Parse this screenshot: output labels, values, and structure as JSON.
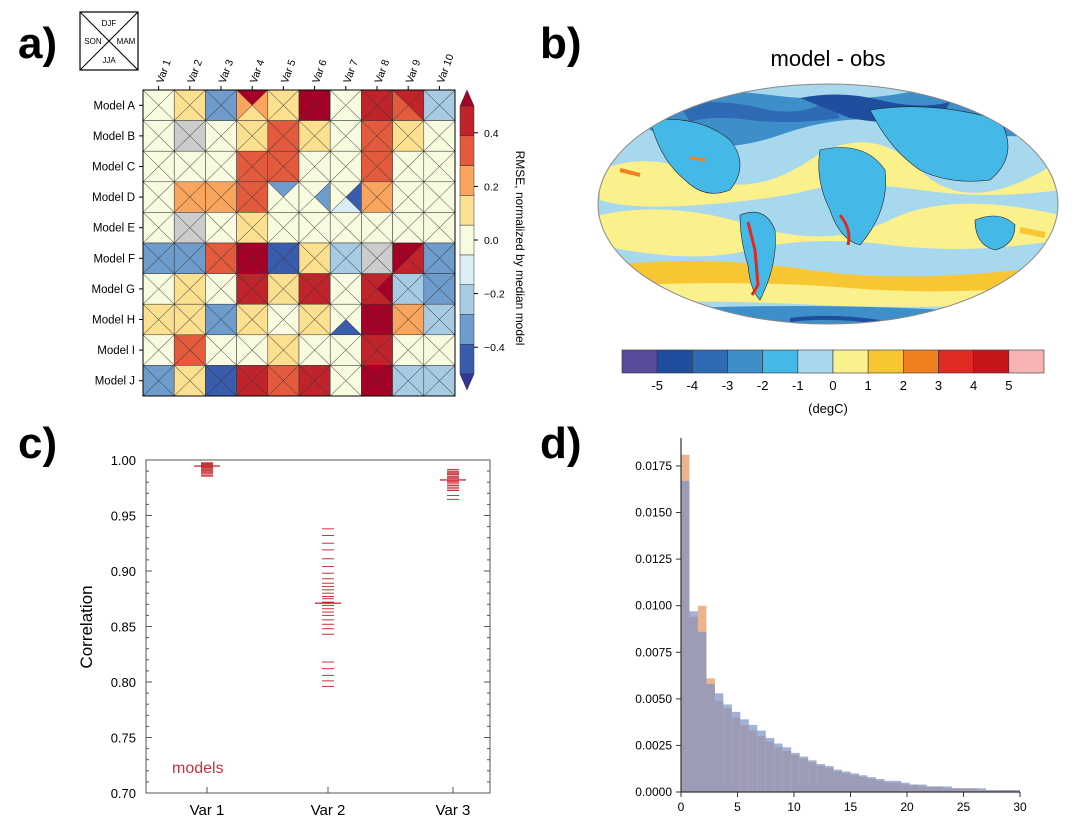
{
  "panels": {
    "a": {
      "label": "a)"
    },
    "b": {
      "label": "b)"
    },
    "c": {
      "label": "c)"
    },
    "d": {
      "label": "d)"
    }
  },
  "chart_data": [
    {
      "type": "heatmap",
      "panel": "a",
      "legend_box": {
        "top": "DJF",
        "left": "SON",
        "right": "MAM",
        "bottom": "JJA"
      },
      "columns": [
        "Var 1",
        "Var 2",
        "Var 3",
        "Var 4",
        "Var 5",
        "Var 6",
        "Var 7",
        "Var 8",
        "Var 9",
        "Var 10"
      ],
      "rows": [
        "Model A",
        "Model B",
        "Model C",
        "Model D",
        "Model E",
        "Model F",
        "Model G",
        "Model H",
        "Model I",
        "Model J"
      ],
      "season_order": [
        "DJF",
        "MAM",
        "JJA",
        "SON"
      ],
      "values": [
        [
          [
            0.05,
            0.05,
            0.05,
            0.05
          ],
          [
            0.15,
            0.15,
            0.15,
            0.15
          ],
          [
            -0.3,
            -0.3,
            -0.3,
            -0.3
          ],
          [
            0.6,
            0.2,
            0.15,
            0.25
          ],
          [
            0.15,
            0.15,
            0.15,
            0.15
          ],
          [
            0.6,
            0.6,
            0.6,
            0.6
          ],
          [
            -0.05,
            -0.05,
            -0.05,
            -0.05
          ],
          [
            0.5,
            0.5,
            0.5,
            0.5
          ],
          [
            0.4,
            0.45,
            0.3,
            0.35
          ],
          [
            -0.2,
            -0.2,
            -0.2,
            -0.2
          ]
        ],
        [
          [
            -0.05,
            -0.05,
            -0.05,
            -0.05
          ],
          [
            null,
            null,
            null,
            null
          ],
          [
            0.05,
            0.05,
            0.05,
            0.05
          ],
          [
            0.15,
            0.15,
            0.15,
            0.15
          ],
          [
            0.3,
            0.3,
            0.3,
            0.3
          ],
          [
            0.15,
            0.15,
            0.15,
            0.15
          ],
          [
            0.05,
            0.05,
            0.05,
            0.05
          ],
          [
            0.3,
            0.3,
            0.3,
            0.3
          ],
          [
            0.1,
            0.1,
            0.1,
            0.1
          ],
          [
            -0.05,
            -0.05,
            -0.05,
            -0.05
          ]
        ],
        [
          [
            0.05,
            0.05,
            0.05,
            0.05
          ],
          [
            0.05,
            0.05,
            0.05,
            0.05
          ],
          [
            -0.05,
            -0.05,
            -0.05,
            -0.05
          ],
          [
            0.3,
            0.3,
            0.3,
            0.3
          ],
          [
            0.3,
            0.3,
            0.3,
            0.3
          ],
          [
            0.05,
            0.05,
            0.05,
            0.05
          ],
          [
            -0.05,
            -0.05,
            -0.05,
            -0.05
          ],
          [
            0.3,
            0.3,
            0.3,
            0.3
          ],
          [
            0.05,
            0.05,
            0.05,
            0.05
          ],
          [
            -0.05,
            -0.05,
            -0.05,
            -0.05
          ]
        ],
        [
          [
            0.05,
            0.05,
            0.05,
            0.05
          ],
          [
            0.2,
            0.2,
            0.2,
            0.2
          ],
          [
            0.2,
            0.2,
            0.2,
            0.2
          ],
          [
            0.3,
            0.3,
            0.3,
            0.3
          ],
          [
            -0.3,
            -0.05,
            -0.05,
            -0.05
          ],
          [
            0.05,
            -0.35,
            -0.05,
            0.05
          ],
          [
            0.05,
            -0.45,
            -0.1,
            0.05
          ],
          [
            0.2,
            0.2,
            0.2,
            0.2
          ],
          [
            0.05,
            0.05,
            0.05,
            0.05
          ],
          [
            0.05,
            0.05,
            0.05,
            0.05
          ]
        ],
        [
          [
            -0.05,
            -0.05,
            -0.05,
            -0.05
          ],
          [
            null,
            null,
            null,
            null
          ],
          [
            0.05,
            0.05,
            0.05,
            0.05
          ],
          [
            0.15,
            0.15,
            0.15,
            0.15
          ],
          [
            0.05,
            0.05,
            0.05,
            0.05
          ],
          [
            -0.05,
            -0.05,
            -0.05,
            -0.05
          ],
          [
            -0.05,
            -0.05,
            -0.05,
            -0.05
          ],
          [
            0.05,
            0.05,
            0.05,
            0.05
          ],
          [
            -0.05,
            -0.05,
            -0.05,
            -0.05
          ],
          [
            -0.05,
            -0.05,
            -0.05,
            -0.05
          ]
        ],
        [
          [
            -0.3,
            -0.3,
            -0.3,
            -0.3
          ],
          [
            -0.3,
            -0.3,
            -0.3,
            -0.3
          ],
          [
            0.3,
            0.3,
            0.3,
            0.3
          ],
          [
            0.6,
            0.6,
            0.6,
            0.6
          ],
          [
            -0.45,
            -0.45,
            -0.45,
            -0.45
          ],
          [
            0.15,
            0.15,
            0.15,
            0.15
          ],
          [
            -0.2,
            -0.2,
            -0.2,
            -0.2
          ],
          [
            null,
            null,
            null,
            null
          ],
          [
            0.6,
            0.4,
            0.4,
            0.6
          ],
          [
            -0.3,
            -0.3,
            -0.3,
            -0.3
          ]
        ],
        [
          [
            -0.05,
            -0.05,
            -0.05,
            -0.05
          ],
          [
            0.15,
            0.15,
            0.15,
            0.15
          ],
          [
            0.05,
            0.05,
            0.05,
            0.05
          ],
          [
            0.45,
            0.45,
            0.45,
            0.45
          ],
          [
            0.15,
            0.15,
            0.15,
            0.15
          ],
          [
            0.4,
            0.4,
            0.4,
            0.4
          ],
          [
            -0.05,
            -0.05,
            -0.05,
            -0.05
          ],
          [
            0.45,
            0.6,
            0.45,
            0.45
          ],
          [
            -0.2,
            -0.2,
            -0.2,
            -0.2
          ],
          [
            -0.3,
            -0.3,
            -0.3,
            -0.3
          ]
        ],
        [
          [
            0.15,
            0.15,
            0.15,
            0.15
          ],
          [
            0.15,
            0.15,
            0.15,
            0.15
          ],
          [
            -0.3,
            -0.3,
            -0.3,
            -0.3
          ],
          [
            0.15,
            0.15,
            0.15,
            0.15
          ],
          [
            0.05,
            0.05,
            0.05,
            0.05
          ],
          [
            0.15,
            0.15,
            0.15,
            0.15
          ],
          [
            -0.05,
            -0.05,
            -0.45,
            -0.05
          ],
          [
            0.6,
            0.6,
            0.6,
            0.6
          ],
          [
            0.2,
            0.2,
            0.2,
            0.2
          ],
          [
            -0.2,
            -0.2,
            -0.2,
            -0.2
          ]
        ],
        [
          [
            -0.05,
            -0.05,
            -0.05,
            -0.05
          ],
          [
            0.3,
            0.3,
            0.3,
            0.3
          ],
          [
            0.05,
            0.05,
            0.05,
            0.05
          ],
          [
            0.05,
            0.05,
            0.05,
            0.05
          ],
          [
            0.15,
            0.15,
            0.15,
            0.15
          ],
          [
            0.05,
            0.05,
            0.05,
            0.05
          ],
          [
            0.05,
            0.05,
            0.05,
            0.05
          ],
          [
            0.4,
            0.4,
            0.4,
            0.4
          ],
          [
            0.05,
            0.05,
            0.05,
            0.05
          ],
          [
            0.05,
            0.05,
            0.05,
            0.05
          ]
        ],
        [
          [
            -0.35,
            -0.35,
            -0.35,
            -0.35
          ],
          [
            0.15,
            0.15,
            0.15,
            0.15
          ],
          [
            -0.5,
            -0.5,
            -0.5,
            -0.5
          ],
          [
            0.45,
            0.45,
            0.45,
            0.45
          ],
          [
            0.3,
            0.3,
            0.3,
            0.3
          ],
          [
            0.45,
            0.45,
            0.45,
            0.45
          ],
          [
            -0.05,
            -0.05,
            -0.05,
            -0.05
          ],
          [
            0.6,
            0.6,
            0.6,
            0.6
          ],
          [
            -0.2,
            -0.2,
            -0.2,
            -0.2
          ],
          [
            -0.2,
            -0.2,
            -0.2,
            -0.2
          ]
        ]
      ],
      "colorbar": {
        "label": "RMSE, normalized by median model",
        "ticks": [
          "0.4",
          "0.2",
          "0.0",
          "−0.2",
          "−0.4"
        ],
        "tick_values": [
          0.4,
          0.2,
          0.0,
          -0.2,
          -0.4
        ],
        "range": [
          -0.5,
          0.5
        ],
        "extend": "both",
        "colors": [
          "#3a5cad",
          "#6e9ccd",
          "#a7cbe3",
          "#dbeef6",
          "#f9fbe0",
          "#fce090",
          "#f9a55e",
          "#e45a3d",
          "#c0232a"
        ],
        "under_color": "#313695",
        "over_color": "#a50026",
        "missing_color": "#cccccc"
      }
    },
    {
      "type": "map",
      "panel": "b",
      "title": "model - obs",
      "colorbar": {
        "labels": [
          "-5",
          "-4",
          "-3",
          "-2",
          "-1",
          "0",
          "1",
          "2",
          "3",
          "4",
          "5"
        ],
        "unit": "(degC)",
        "colors": [
          "#5a4a9e",
          "#1f4e9f",
          "#2f6ab4",
          "#3e8ec9",
          "#44b9e8",
          "#a8d8ee",
          "#faf08c",
          "#f8c632",
          "#f0801f",
          "#e02b23",
          "#c5161c",
          "#f7b4b4"
        ]
      }
    },
    {
      "type": "scatter",
      "panel": "c",
      "categories": [
        "Var 1",
        "Var 2",
        "Var 3"
      ],
      "ylabel": "Correlation",
      "ylim": [
        0.7,
        1.0
      ],
      "yticks": [
        "0.70",
        "0.75",
        "0.80",
        "0.85",
        "0.90",
        "0.95",
        "1.00"
      ],
      "ytick_values": [
        0.7,
        0.75,
        0.8,
        0.85,
        0.9,
        0.95,
        1.0
      ],
      "series_label": "models",
      "series_color": "#c8323c",
      "series": [
        {
          "category": "Var 1",
          "values": [
            0.9975,
            0.997,
            0.9965,
            0.996,
            0.9955,
            0.995,
            0.9945,
            0.994,
            0.9935,
            0.993,
            0.992,
            0.991,
            0.99,
            0.989,
            0.988,
            0.9865,
            0.9855
          ],
          "mean": 0.9945
        },
        {
          "category": "Var 2",
          "values": [
            0.938,
            0.932,
            0.925,
            0.919,
            0.911,
            0.904,
            0.898,
            0.893,
            0.889,
            0.886,
            0.883,
            0.88,
            0.877,
            0.875,
            0.872,
            0.869,
            0.866,
            0.863,
            0.86,
            0.856,
            0.852,
            0.848,
            0.843,
            0.818,
            0.812,
            0.806,
            0.801,
            0.796
          ],
          "mean": 0.871
        },
        {
          "category": "Var 3",
          "values": [
            0.9915,
            0.99,
            0.989,
            0.988,
            0.987,
            0.9855,
            0.9845,
            0.9835,
            0.982,
            0.981,
            0.98,
            0.9785,
            0.977,
            0.9755,
            0.974,
            0.9725,
            0.968,
            0.9645
          ],
          "mean": 0.982
        }
      ]
    },
    {
      "type": "histogram",
      "panel": "d",
      "xlim": [
        0,
        30
      ],
      "ylim": [
        0,
        0.019
      ],
      "xticks": [
        "0",
        "5",
        "10",
        "15",
        "20",
        "25",
        "30"
      ],
      "xtick_values": [
        0,
        5,
        10,
        15,
        20,
        25,
        30
      ],
      "yticks": [
        "0.0000",
        "0.0025",
        "0.0050",
        "0.0075",
        "0.0100",
        "0.0125",
        "0.0150",
        "0.0175"
      ],
      "ytick_values": [
        0,
        0.0025,
        0.005,
        0.0075,
        0.01,
        0.0125,
        0.015,
        0.0175
      ],
      "bin_width": 0.75,
      "series": [
        {
          "color": "#e8a77a",
          "values": [
            0.0181,
            0.0094,
            0.01,
            0.0061,
            0.0049,
            0.0045,
            0.004,
            0.0036,
            0.0033,
            0.003,
            0.0027,
            0.0024,
            0.0022,
            0.002,
            0.0018,
            0.0016,
            0.0014,
            0.0013,
            0.0011,
            0.001,
            0.0009,
            0.0008,
            0.0007,
            0.0006,
            0.0005,
            0.0005,
            0.0004,
            0.0004,
            0.0003,
            0.0003,
            0.0003,
            0.0002,
            0.0002,
            0.0002,
            0.0002,
            0.0001,
            0.0001,
            0.0001,
            0.0001,
            0.0001
          ]
        },
        {
          "color": "#7e93c8",
          "values": [
            0.0167,
            0.0097,
            0.0086,
            0.0058,
            0.0053,
            0.0047,
            0.0043,
            0.0039,
            0.0036,
            0.0033,
            0.0029,
            0.0026,
            0.0024,
            0.0021,
            0.0019,
            0.0017,
            0.0015,
            0.0014,
            0.0012,
            0.0011,
            0.001,
            0.0009,
            0.0008,
            0.0007,
            0.0006,
            0.0006,
            0.0005,
            0.0004,
            0.0004,
            0.0003,
            0.0003,
            0.0003,
            0.0002,
            0.0002,
            0.0002,
            0.0002,
            0.0001,
            0.0001,
            0.0001,
            0.0001
          ]
        }
      ]
    }
  ]
}
